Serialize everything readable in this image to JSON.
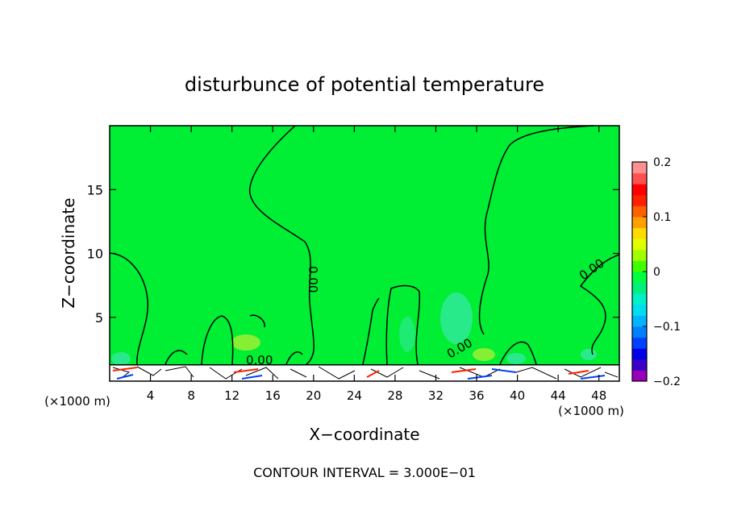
{
  "chart_data": {
    "type": "heatmap",
    "title": "disturbunce of potential temperature",
    "xlabel": "X−coordinate",
    "ylabel": "Z−coordinate",
    "x_unit_left": "(×1000 m)",
    "x_unit_right": "(×1000 m)",
    "xlim": [
      0,
      50
    ],
    "ylim": [
      0,
      20
    ],
    "x_ticks": [
      4,
      8,
      12,
      16,
      20,
      24,
      28,
      32,
      36,
      40,
      44,
      48
    ],
    "y_ticks": [
      5,
      10,
      15
    ],
    "colorbar": {
      "range": [
        -0.2,
        0.2
      ],
      "tick_values": [
        -0.2,
        -0.1,
        0,
        0.1,
        0.2
      ],
      "tick_labels": [
        "−0.2",
        "−0.1",
        "0",
        "0.1",
        "0.2"
      ],
      "colors": [
        "#9a00b8",
        "#3b00c8",
        "#0000e6",
        "#0040ff",
        "#0080ff",
        "#00b4ff",
        "#00dcf0",
        "#00f0c8",
        "#00f080",
        "#00ff40",
        "#40ff00",
        "#a0ff00",
        "#e0ff00",
        "#ffdc00",
        "#ffa000",
        "#ff6000",
        "#ff2000",
        "#ff0000",
        "#ff5050",
        "#ff9090"
      ]
    },
    "background_value": 0.0,
    "contour_labels": [
      "0.00",
      "0.00",
      "0.00",
      "0.00"
    ],
    "footer": "CONTOUR INTERVAL = 3.000E−01",
    "colors": {
      "field": "#00ee33",
      "cyan_patch": "#33e8a0",
      "yellow_patch": "#a6ef33"
    }
  }
}
